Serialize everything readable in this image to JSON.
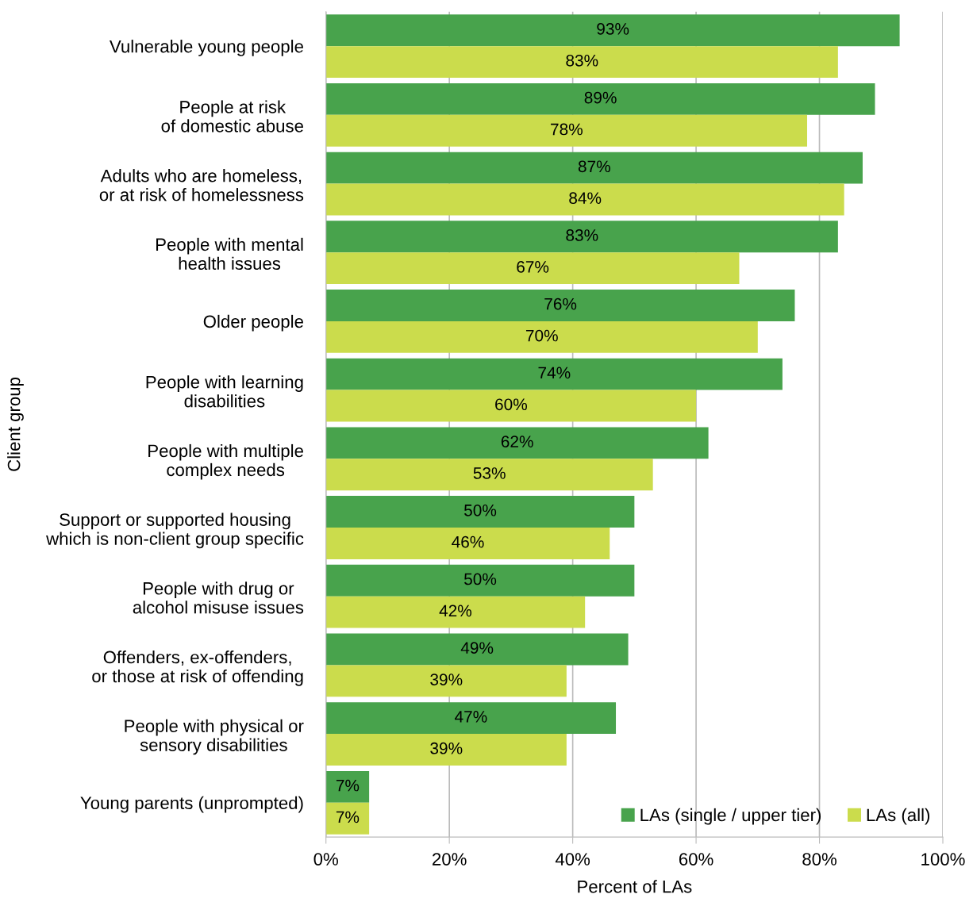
{
  "chart_data": {
    "type": "bar",
    "orientation": "horizontal",
    "xlabel": "Percent of LAs",
    "ylabel": "Client group",
    "categories": [
      "Vulnerable young people",
      "People at risk\nof domestic abuse",
      "Adults who are homeless,\nor at risk of homelessness",
      "People with mental\nhealth issues",
      "Older people",
      "People with learning\ndisabilities",
      "People with multiple\ncomplex needs",
      "Support or supported housing\nwhich is non-client group specific",
      "People with drug or\nalcohol misuse issues",
      "Offenders, ex-offenders,\nor those at risk of offending",
      "People with physical or\nsensory disabilities",
      "Young parents (unprompted)"
    ],
    "series": [
      {
        "name": "LAs (single / upper tier)",
        "color": "#48a34c",
        "values": [
          93,
          89,
          87,
          83,
          76,
          74,
          62,
          50,
          50,
          49,
          47,
          7
        ],
        "value_labels": [
          "93%",
          "89%",
          "87%",
          "83%",
          "76%",
          "74%",
          "62%",
          "50%",
          "50%",
          "49%",
          "47%",
          "7%"
        ]
      },
      {
        "name": "LAs (all)",
        "color": "#cbdc4c",
        "values": [
          83,
          78,
          84,
          67,
          70,
          60,
          53,
          46,
          42,
          39,
          39,
          7
        ],
        "value_labels": [
          "83%",
          "78%",
          "84%",
          "67%",
          "70%",
          "60%",
          "53%",
          "46%",
          "42%",
          "39%",
          "39%",
          "7%"
        ]
      }
    ],
    "xlim": [
      0,
      100
    ],
    "xticks": [
      {
        "value": 0,
        "label": "0%"
      },
      {
        "value": 20,
        "label": "20%"
      },
      {
        "value": 40,
        "label": "40%"
      },
      {
        "value": 60,
        "label": "60%"
      },
      {
        "value": 80,
        "label": "80%"
      },
      {
        "value": 100,
        "label": "100%"
      }
    ],
    "grid": "x",
    "legend": "bottom right"
  }
}
